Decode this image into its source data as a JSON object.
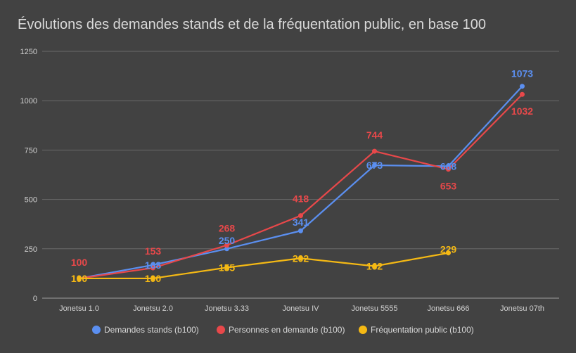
{
  "chart_data": {
    "type": "line",
    "title": "Évolutions des demandes stands et de la fréquentation public, en base 100",
    "xlabel": "",
    "ylabel": "",
    "categories": [
      "Jonetsu 1.0",
      "Jonetsu 2.0",
      "Jonetsu 3.33",
      "Jonetsu IV",
      "Jonetsu 5555",
      "Jonetsu 666",
      "Jonetsu 07th"
    ],
    "ylim": [
      0,
      1250
    ],
    "yticks": [
      0,
      250,
      500,
      750,
      1000,
      1250
    ],
    "grid": true,
    "legend_position": "bottom",
    "series": [
      {
        "name": "Demandes stands (b100)",
        "color": "#5b8ff0",
        "values": [
          100,
          168,
          250,
          341,
          673,
          668,
          1073
        ],
        "labels": [
          "",
          "168",
          "250",
          "341",
          "673",
          "668",
          "1073"
        ]
      },
      {
        "name": "Personnes en demande (b100)",
        "color": "#e8484a",
        "values": [
          100,
          153,
          268,
          418,
          744,
          653,
          1032
        ],
        "labels": [
          "100",
          "153",
          "268",
          "418",
          "744",
          "653",
          "1032"
        ]
      },
      {
        "name": "Fréquentation public (b100)",
        "color": "#f5b914",
        "values": [
          100,
          100,
          155,
          202,
          162,
          229,
          null
        ],
        "labels": [
          "100",
          "100",
          "155",
          "202",
          "162",
          "229",
          ""
        ]
      }
    ]
  }
}
